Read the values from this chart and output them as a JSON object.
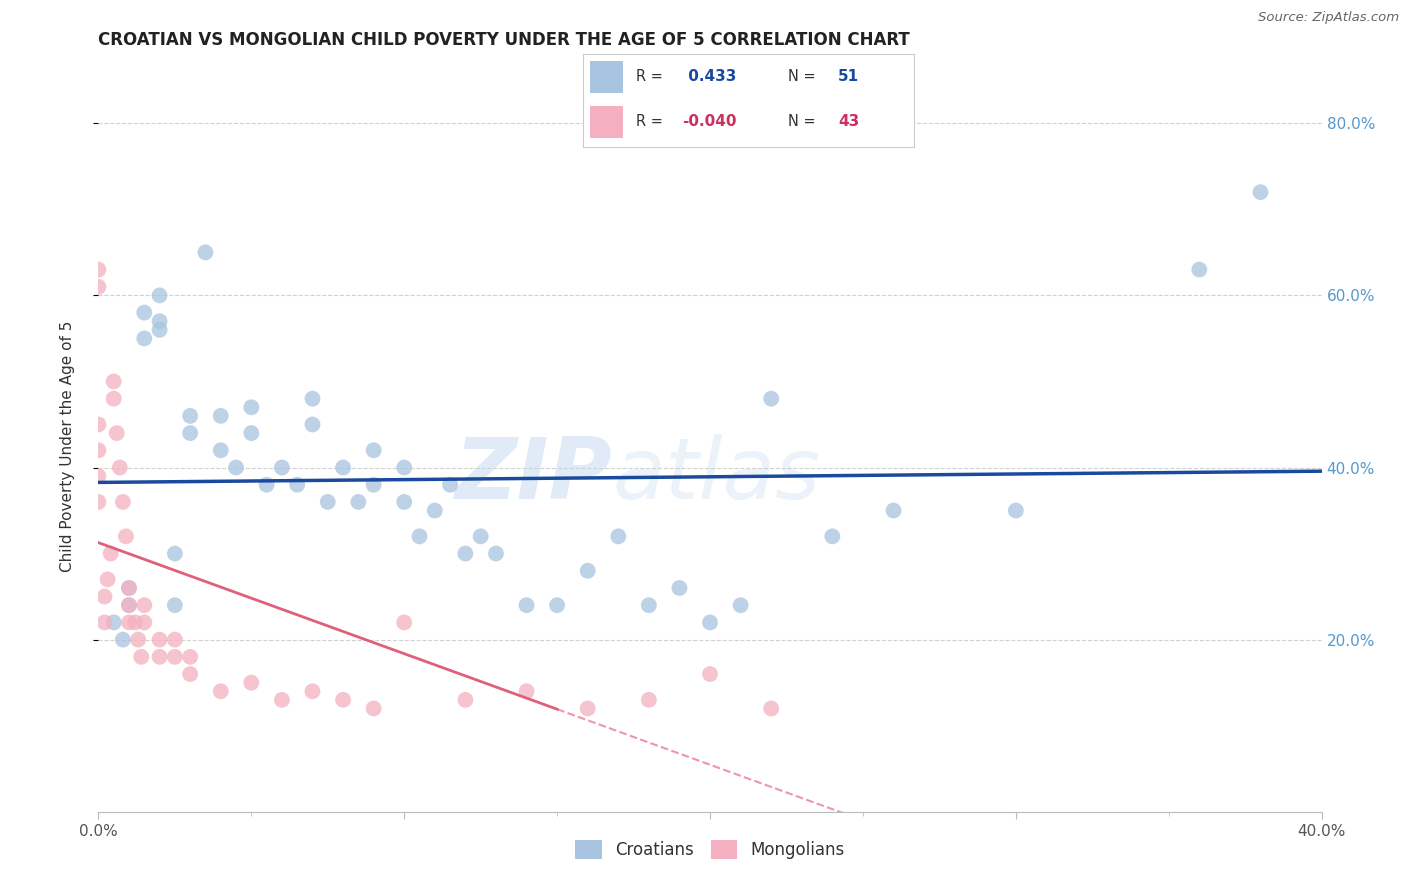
{
  "title": "CROATIAN VS MONGOLIAN CHILD POVERTY UNDER THE AGE OF 5 CORRELATION CHART",
  "source": "Source: ZipAtlas.com",
  "ylabel": "Child Poverty Under the Age of 5",
  "xlim": [
    0.0,
    0.4
  ],
  "ylim": [
    0.0,
    0.85
  ],
  "blue_R": 0.433,
  "blue_N": 51,
  "pink_R": -0.04,
  "pink_N": 43,
  "blue_color": "#a8c4e0",
  "pink_color": "#f4b0c0",
  "blue_line_color": "#1a4a9e",
  "pink_line_color": "#e0607a",
  "watermark_zip": "ZIP",
  "watermark_atlas": "atlas",
  "legend_labels": [
    "Croatians",
    "Mongolians"
  ],
  "blue_scatter_x": [
    0.005,
    0.008,
    0.01,
    0.01,
    0.015,
    0.015,
    0.02,
    0.02,
    0.02,
    0.025,
    0.025,
    0.03,
    0.03,
    0.035,
    0.04,
    0.04,
    0.045,
    0.05,
    0.05,
    0.055,
    0.06,
    0.065,
    0.07,
    0.07,
    0.075,
    0.08,
    0.085,
    0.09,
    0.09,
    0.1,
    0.1,
    0.105,
    0.11,
    0.115,
    0.12,
    0.125,
    0.13,
    0.14,
    0.15,
    0.16,
    0.17,
    0.18,
    0.19,
    0.2,
    0.21,
    0.22,
    0.24,
    0.26,
    0.3,
    0.36,
    0.38
  ],
  "blue_scatter_y": [
    0.22,
    0.2,
    0.24,
    0.26,
    0.55,
    0.58,
    0.57,
    0.6,
    0.56,
    0.24,
    0.3,
    0.44,
    0.46,
    0.65,
    0.42,
    0.46,
    0.4,
    0.44,
    0.47,
    0.38,
    0.4,
    0.38,
    0.45,
    0.48,
    0.36,
    0.4,
    0.36,
    0.38,
    0.42,
    0.36,
    0.4,
    0.32,
    0.35,
    0.38,
    0.3,
    0.32,
    0.3,
    0.24,
    0.24,
    0.28,
    0.32,
    0.24,
    0.26,
    0.22,
    0.24,
    0.48,
    0.32,
    0.35,
    0.35,
    0.63,
    0.72
  ],
  "pink_scatter_x": [
    0.0,
    0.0,
    0.0,
    0.0,
    0.0,
    0.0,
    0.002,
    0.002,
    0.003,
    0.004,
    0.005,
    0.005,
    0.006,
    0.007,
    0.008,
    0.009,
    0.01,
    0.01,
    0.01,
    0.012,
    0.013,
    0.014,
    0.015,
    0.015,
    0.02,
    0.02,
    0.025,
    0.025,
    0.03,
    0.03,
    0.04,
    0.05,
    0.06,
    0.07,
    0.08,
    0.09,
    0.1,
    0.12,
    0.14,
    0.16,
    0.18,
    0.2,
    0.22
  ],
  "pink_scatter_y": [
    0.61,
    0.63,
    0.45,
    0.42,
    0.39,
    0.36,
    0.22,
    0.25,
    0.27,
    0.3,
    0.48,
    0.5,
    0.44,
    0.4,
    0.36,
    0.32,
    0.22,
    0.24,
    0.26,
    0.22,
    0.2,
    0.18,
    0.22,
    0.24,
    0.2,
    0.18,
    0.18,
    0.2,
    0.16,
    0.18,
    0.14,
    0.15,
    0.13,
    0.14,
    0.13,
    0.12,
    0.22,
    0.13,
    0.14,
    0.12,
    0.13,
    0.16,
    0.12
  ]
}
